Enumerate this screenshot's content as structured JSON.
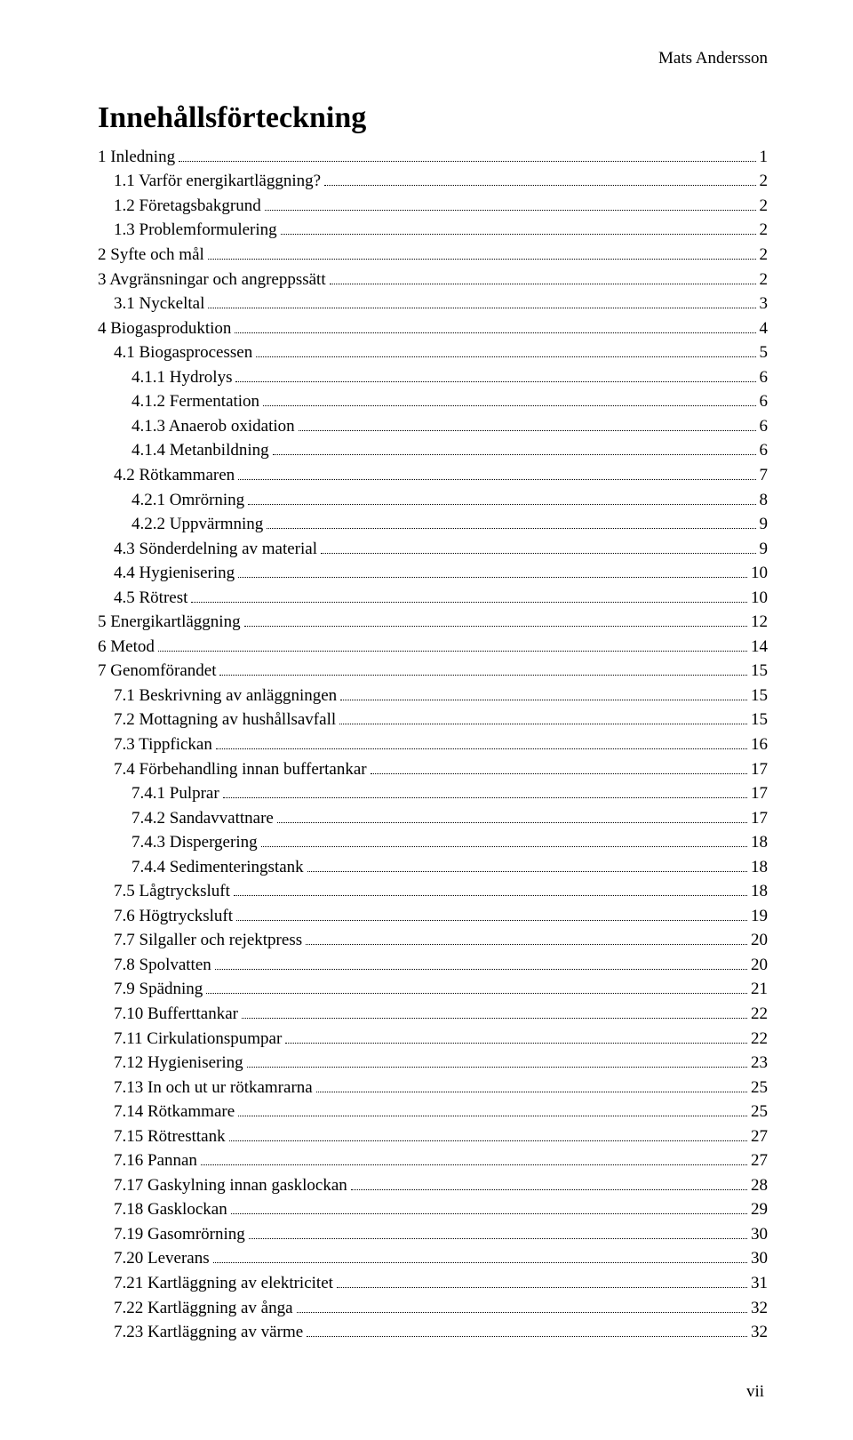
{
  "author": "Mats Andersson",
  "title": "Innehållsförteckning",
  "page_number": "vii",
  "toc": [
    {
      "indent": 0,
      "label": "1 Inledning",
      "page": "1"
    },
    {
      "indent": 1,
      "label": "1.1 Varför energikartläggning?",
      "page": "2"
    },
    {
      "indent": 1,
      "label": "1.2 Företagsbakgrund",
      "page": "2"
    },
    {
      "indent": 1,
      "label": "1.3 Problemformulering",
      "page": "2"
    },
    {
      "indent": 0,
      "label": "2 Syfte och mål",
      "page": "2"
    },
    {
      "indent": 0,
      "label": "3 Avgränsningar och angreppssätt",
      "page": "2"
    },
    {
      "indent": 1,
      "label": "3.1 Nyckeltal",
      "page": "3"
    },
    {
      "indent": 0,
      "label": "4 Biogasproduktion",
      "page": "4"
    },
    {
      "indent": 1,
      "label": "4.1 Biogasprocessen",
      "page": "5"
    },
    {
      "indent": 2,
      "label": "4.1.1 Hydrolys",
      "page": "6"
    },
    {
      "indent": 2,
      "label": "4.1.2 Fermentation",
      "page": "6"
    },
    {
      "indent": 2,
      "label": "4.1.3 Anaerob oxidation",
      "page": "6"
    },
    {
      "indent": 2,
      "label": "4.1.4 Metanbildning",
      "page": "6"
    },
    {
      "indent": 1,
      "label": "4.2 Rötkammaren",
      "page": "7"
    },
    {
      "indent": 2,
      "label": "4.2.1 Omrörning",
      "page": "8"
    },
    {
      "indent": 2,
      "label": "4.2.2 Uppvärmning",
      "page": "9"
    },
    {
      "indent": 1,
      "label": "4.3 Sönderdelning av material",
      "page": "9"
    },
    {
      "indent": 1,
      "label": "4.4 Hygienisering",
      "page": "10"
    },
    {
      "indent": 1,
      "label": "4.5 Rötrest",
      "page": "10"
    },
    {
      "indent": 0,
      "label": "5 Energikartläggning",
      "page": "12"
    },
    {
      "indent": 0,
      "label": "6 Metod",
      "page": "14"
    },
    {
      "indent": 0,
      "label": "7 Genomförandet",
      "page": "15"
    },
    {
      "indent": 1,
      "label": "7.1 Beskrivning av anläggningen",
      "page": "15"
    },
    {
      "indent": 1,
      "label": "7.2 Mottagning av hushållsavfall",
      "page": "15"
    },
    {
      "indent": 1,
      "label": "7.3 Tippfickan",
      "page": "16"
    },
    {
      "indent": 1,
      "label": "7.4 Förbehandling innan buffertankar",
      "page": "17"
    },
    {
      "indent": 2,
      "label": "7.4.1 Pulprar",
      "page": "17"
    },
    {
      "indent": 2,
      "label": "7.4.2 Sandavvattnare",
      "page": "17"
    },
    {
      "indent": 2,
      "label": "7.4.3 Dispergering",
      "page": "18"
    },
    {
      "indent": 2,
      "label": "7.4.4 Sedimenteringstank",
      "page": "18"
    },
    {
      "indent": 1,
      "label": "7.5 Lågtrycksluft",
      "page": "18"
    },
    {
      "indent": 1,
      "label": "7.6 Högtrycksluft",
      "page": "19"
    },
    {
      "indent": 1,
      "label": "7.7 Silgaller och rejektpress",
      "page": "20"
    },
    {
      "indent": 1,
      "label": "7.8 Spolvatten",
      "page": "20"
    },
    {
      "indent": 1,
      "label": "7.9 Spädning",
      "page": "21"
    },
    {
      "indent": 1,
      "label": "7.10 Bufferttankar",
      "page": "22"
    },
    {
      "indent": 1,
      "label": "7.11 Cirkulationspumpar",
      "page": "22"
    },
    {
      "indent": 1,
      "label": "7.12 Hygienisering",
      "page": "23"
    },
    {
      "indent": 1,
      "label": "7.13 In och ut ur rötkamrarna",
      "page": "25"
    },
    {
      "indent": 1,
      "label": "7.14 Rötkammare",
      "page": "25"
    },
    {
      "indent": 1,
      "label": "7.15 Rötresttank",
      "page": "27"
    },
    {
      "indent": 1,
      "label": "7.16 Pannan",
      "page": "27"
    },
    {
      "indent": 1,
      "label": "7.17 Gaskylning innan gasklockan",
      "page": "28"
    },
    {
      "indent": 1,
      "label": "7.18 Gasklockan",
      "page": "29"
    },
    {
      "indent": 1,
      "label": "7.19 Gasomrörning",
      "page": "30"
    },
    {
      "indent": 1,
      "label": "7.20 Leverans",
      "page": "30"
    },
    {
      "indent": 1,
      "label": "7.21 Kartläggning av elektricitet",
      "page": "31"
    },
    {
      "indent": 1,
      "label": "7.22 Kartläggning av ånga",
      "page": "32"
    },
    {
      "indent": 1,
      "label": "7.23 Kartläggning av värme",
      "page": "32"
    }
  ]
}
